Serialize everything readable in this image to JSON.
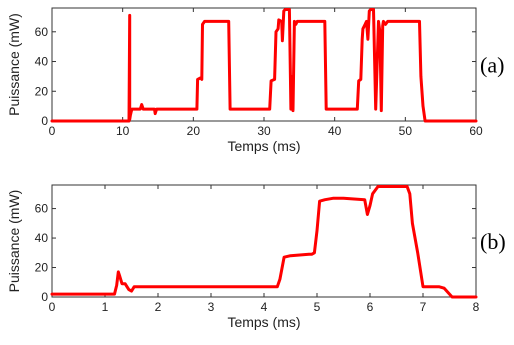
{
  "chart_data": [
    {
      "type": "line",
      "panel_label": "(a)",
      "xlabel": "Temps (ms)",
      "ylabel": "Puissance (mW)",
      "xlim": [
        0,
        60
      ],
      "ylim": [
        0,
        76
      ],
      "xticks": [
        0,
        10,
        20,
        30,
        40,
        50,
        60
      ],
      "yticks": [
        0,
        20,
        40,
        60
      ],
      "grid": false,
      "line_color": "#ff0000",
      "series": [
        {
          "x": [
            0,
            10.9,
            11.0,
            11.0,
            11.1,
            11.2,
            11.3,
            11.5,
            12.5,
            12.7,
            12.9,
            13.2,
            14.5,
            14.6,
            14.8,
            15.0,
            20.5,
            20.6,
            21.0,
            21.2,
            21.3,
            21.6,
            25.0,
            25.2,
            30.8,
            31.0,
            31.5,
            31.7,
            32.0,
            32.1,
            32.5,
            32.6,
            32.8,
            33.0,
            33.3,
            33.6,
            33.8,
            33.9,
            34.1,
            34.3,
            34.5,
            34.7,
            35.0,
            38.5,
            38.6,
            38.8,
            43.2,
            43.4,
            43.7,
            43.9,
            44.0,
            44.3,
            44.5,
            44.7,
            44.9,
            45.1,
            45.3,
            45.5,
            45.8,
            46.2,
            46.4,
            46.6,
            46.8,
            46.9,
            47.2,
            47.5,
            47.7,
            48.0,
            50.8,
            50.9,
            51.1,
            52.0,
            52.2,
            52.5,
            52.8,
            60.0
          ],
          "y": [
            0,
            0,
            71,
            1,
            4,
            6,
            8,
            8,
            8,
            11,
            8,
            8,
            8,
            5,
            8,
            8,
            8,
            28,
            29,
            28,
            65,
            67,
            67,
            8,
            8,
            27,
            28,
            60,
            62,
            68,
            67,
            54,
            74,
            75,
            75,
            75,
            8,
            30,
            7,
            67,
            65,
            67,
            67,
            67,
            67,
            8,
            8,
            27,
            28,
            55,
            62,
            65,
            67,
            55,
            74,
            75,
            75,
            75,
            8,
            67,
            60,
            7,
            64,
            67,
            65,
            67,
            67,
            67,
            67,
            67,
            67,
            67,
            30,
            10,
            0,
            0
          ]
        }
      ]
    },
    {
      "type": "line",
      "panel_label": "(b)",
      "xlabel": "Temps (ms)",
      "ylabel": "Puissance (mW)",
      "xlim": [
        0,
        8
      ],
      "ylim": [
        0,
        76
      ],
      "xticks": [
        0,
        1,
        2,
        3,
        4,
        5,
        6,
        7,
        8
      ],
      "yticks": [
        0,
        20,
        40,
        60
      ],
      "grid": false,
      "line_color": "#ff0000",
      "series": [
        {
          "x": [
            0,
            1.18,
            1.22,
            1.25,
            1.28,
            1.32,
            1.38,
            1.45,
            1.5,
            1.55,
            1.62,
            4.25,
            4.3,
            4.38,
            4.5,
            4.85,
            4.9,
            4.95,
            5.0,
            5.05,
            5.15,
            5.3,
            5.5,
            5.9,
            5.95,
            6.0,
            6.05,
            6.15,
            6.3,
            6.5,
            6.7,
            6.75,
            6.8,
            6.9,
            7.0,
            7.3,
            7.4,
            7.5,
            7.55,
            8.0
          ],
          "y": [
            2,
            2,
            8,
            17,
            14,
            9,
            9,
            5,
            4,
            7,
            7,
            7,
            12,
            27,
            28,
            29,
            29,
            30,
            45,
            65,
            66,
            67,
            67,
            66,
            56,
            62,
            70,
            75,
            75,
            75,
            75,
            70,
            50,
            30,
            7,
            7,
            6,
            2,
            0,
            0
          ]
        }
      ]
    }
  ]
}
